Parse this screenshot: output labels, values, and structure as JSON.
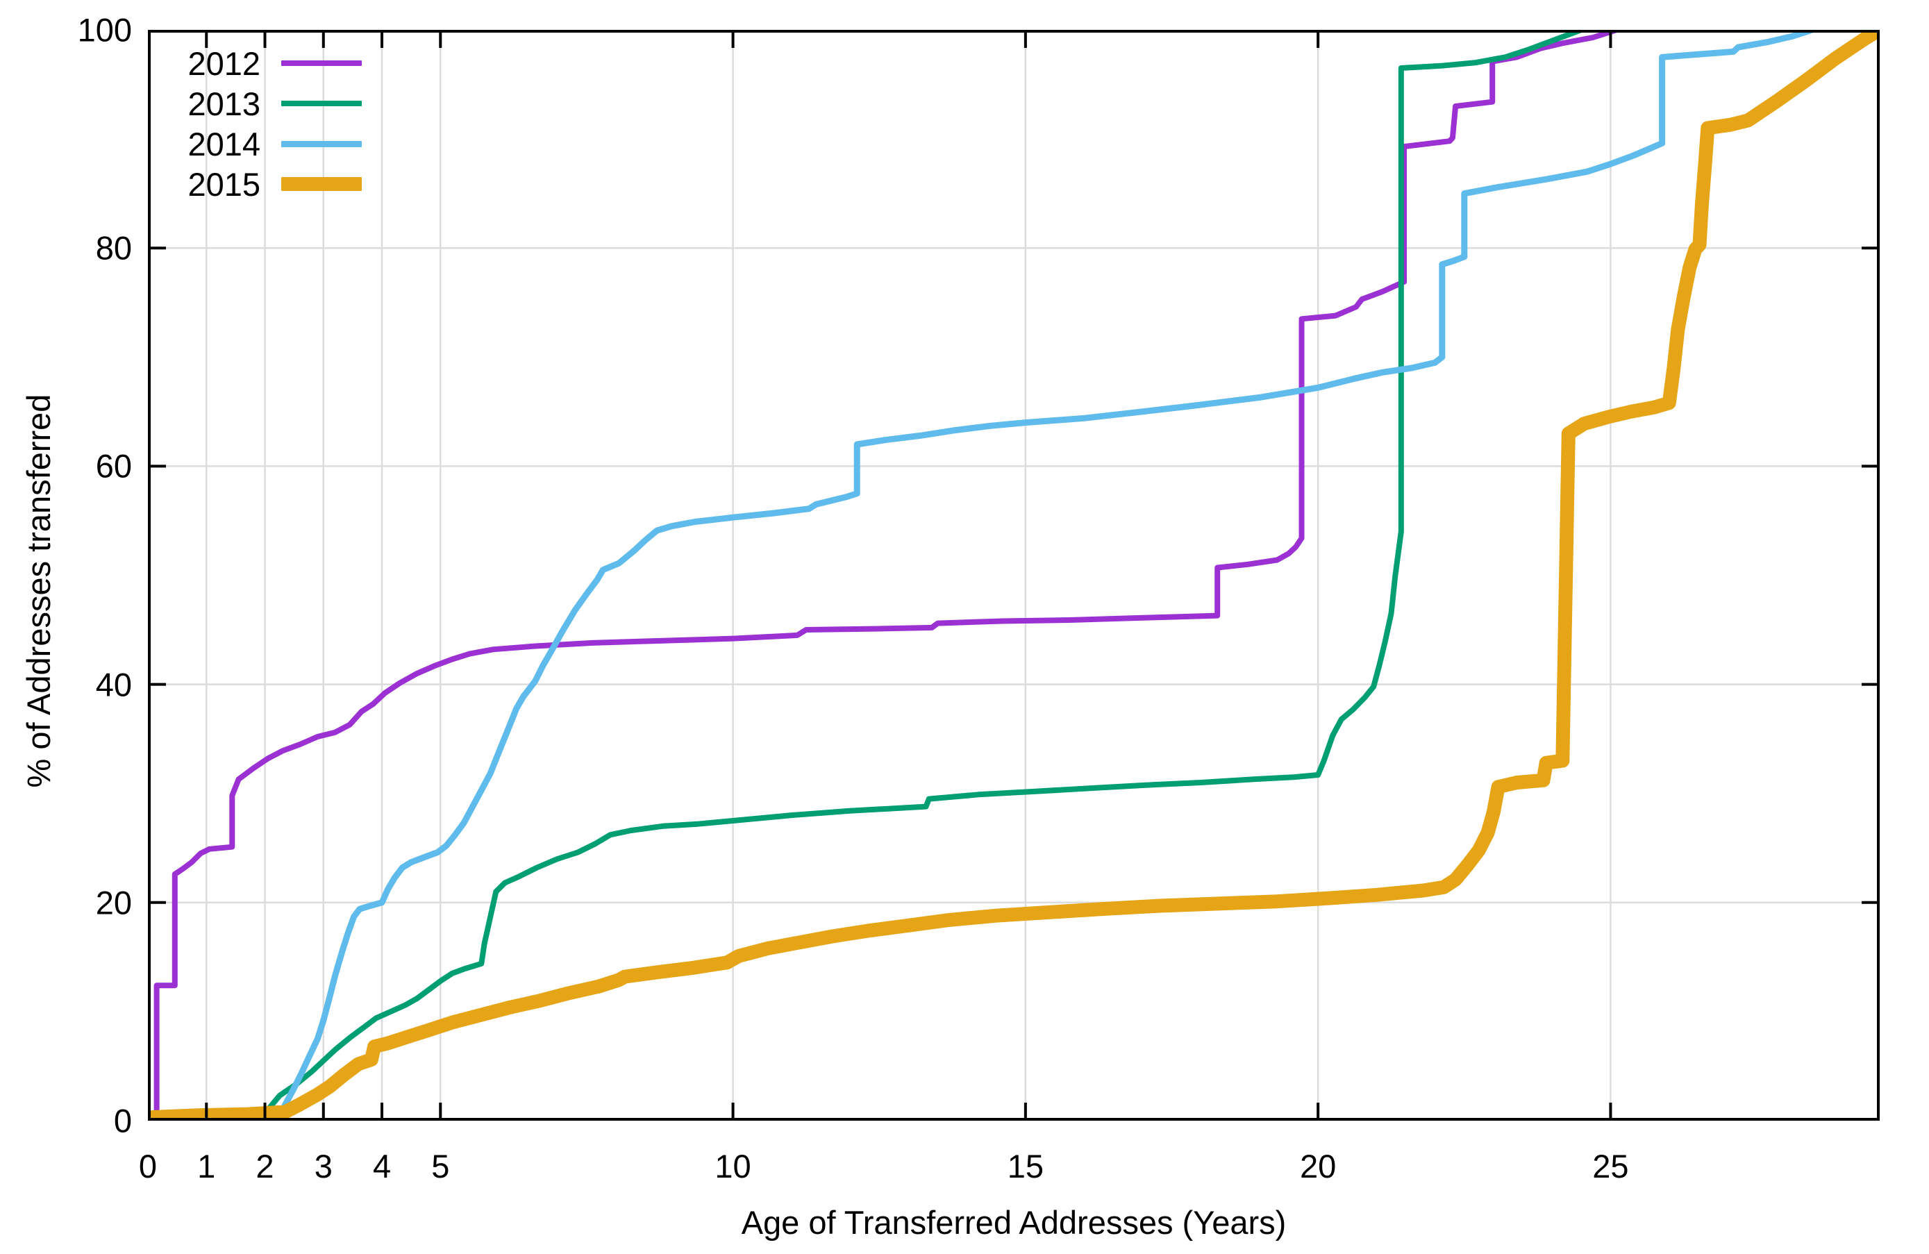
{
  "figure": {
    "background": "#ffffff"
  },
  "chart_data": {
    "type": "line",
    "subtype": "cdf-step-curves",
    "title": "",
    "xlabel": "Age of Transferred Addresses (Years)",
    "ylabel": "% of Addresses transferred",
    "xlim": [
      0,
      29.6
    ],
    "ylim": [
      0,
      100
    ],
    "x_ticks": [
      0,
      1,
      2,
      3,
      4,
      5,
      10,
      15,
      20,
      25
    ],
    "y_ticks": [
      0,
      20,
      40,
      60,
      80,
      100
    ],
    "grid_x": [
      1,
      2,
      3,
      4,
      5,
      10,
      15,
      20,
      25
    ],
    "grid_y": [
      20,
      40,
      60,
      80,
      100
    ],
    "grid_color": "#dcdcdc",
    "axis_color": "#000000",
    "legend_position": "top-left",
    "series": [
      {
        "name": "2012",
        "color": "#9B30D3",
        "stroke_width": 8,
        "points": [
          [
            0,
            0
          ],
          [
            0.15,
            0
          ],
          [
            0.15,
            12.4
          ],
          [
            0.46,
            12.4
          ],
          [
            0.46,
            22.6
          ],
          [
            0.6,
            23.1
          ],
          [
            0.75,
            23.7
          ],
          [
            0.9,
            24.5
          ],
          [
            1.05,
            24.9
          ],
          [
            1.44,
            25.1
          ],
          [
            1.44,
            29.8
          ],
          [
            1.55,
            31.3
          ],
          [
            1.8,
            32.3
          ],
          [
            2.05,
            33.2
          ],
          [
            2.3,
            33.9
          ],
          [
            2.6,
            34.5
          ],
          [
            2.9,
            35.2
          ],
          [
            3.2,
            35.6
          ],
          [
            3.45,
            36.3
          ],
          [
            3.65,
            37.5
          ],
          [
            3.85,
            38.2
          ],
          [
            4.05,
            39.2
          ],
          [
            4.3,
            40.1
          ],
          [
            4.6,
            41.0
          ],
          [
            4.9,
            41.7
          ],
          [
            5.2,
            42.3
          ],
          [
            5.5,
            42.8
          ],
          [
            5.9,
            43.2
          ],
          [
            6.6,
            43.5
          ],
          [
            7.6,
            43.8
          ],
          [
            8.8,
            44.0
          ],
          [
            10.0,
            44.2
          ],
          [
            11.1,
            44.5
          ],
          [
            11.25,
            45.0
          ],
          [
            12.5,
            45.1
          ],
          [
            13.4,
            45.2
          ],
          [
            13.5,
            45.6
          ],
          [
            14.6,
            45.8
          ],
          [
            15.8,
            45.9
          ],
          [
            17.0,
            46.1
          ],
          [
            18.28,
            46.3
          ],
          [
            18.28,
            50.7
          ],
          [
            18.8,
            51.0
          ],
          [
            19.3,
            51.4
          ],
          [
            19.5,
            52.0
          ],
          [
            19.62,
            52.6
          ],
          [
            19.72,
            53.4
          ],
          [
            19.72,
            73.5
          ],
          [
            20.3,
            73.8
          ],
          [
            20.65,
            74.6
          ],
          [
            20.75,
            75.3
          ],
          [
            21.1,
            76.0
          ],
          [
            21.47,
            76.9
          ],
          [
            21.47,
            89.3
          ],
          [
            22.25,
            89.8
          ],
          [
            22.3,
            90.1
          ],
          [
            22.35,
            93.0
          ],
          [
            22.98,
            93.4
          ],
          [
            22.98,
            97.1
          ],
          [
            23.4,
            97.5
          ],
          [
            23.8,
            98.3
          ],
          [
            24.2,
            98.8
          ],
          [
            24.7,
            99.3
          ],
          [
            25.05,
            99.9
          ],
          [
            25.1,
            100
          ],
          [
            25.57,
            100
          ]
        ]
      },
      {
        "name": "2013",
        "color": "#009E73",
        "stroke_width": 8,
        "points": [
          [
            0,
            0
          ],
          [
            1.9,
            0
          ],
          [
            2.05,
            1.0
          ],
          [
            2.25,
            2.3
          ],
          [
            2.55,
            3.4
          ],
          [
            2.8,
            4.5
          ],
          [
            3.0,
            5.5
          ],
          [
            3.2,
            6.5
          ],
          [
            3.45,
            7.6
          ],
          [
            3.7,
            8.6
          ],
          [
            3.9,
            9.4
          ],
          [
            4.15,
            10.0
          ],
          [
            4.4,
            10.6
          ],
          [
            4.6,
            11.2
          ],
          [
            4.8,
            12.0
          ],
          [
            5.0,
            12.8
          ],
          [
            5.2,
            13.5
          ],
          [
            5.4,
            13.9
          ],
          [
            5.7,
            14.4
          ],
          [
            5.75,
            16.2
          ],
          [
            5.85,
            18.6
          ],
          [
            5.95,
            21.0
          ],
          [
            6.1,
            21.8
          ],
          [
            6.35,
            22.4
          ],
          [
            6.65,
            23.2
          ],
          [
            7.0,
            24.0
          ],
          [
            7.35,
            24.6
          ],
          [
            7.65,
            25.4
          ],
          [
            7.9,
            26.2
          ],
          [
            8.25,
            26.6
          ],
          [
            8.8,
            27.0
          ],
          [
            9.4,
            27.2
          ],
          [
            10.0,
            27.5
          ],
          [
            11.0,
            28.0
          ],
          [
            12.0,
            28.4
          ],
          [
            13.3,
            28.8
          ],
          [
            13.35,
            29.5
          ],
          [
            14.2,
            29.9
          ],
          [
            15.2,
            30.2
          ],
          [
            16.2,
            30.5
          ],
          [
            17.2,
            30.8
          ],
          [
            18.0,
            31.0
          ],
          [
            18.9,
            31.3
          ],
          [
            19.6,
            31.5
          ],
          [
            20.0,
            31.7
          ],
          [
            20.1,
            33.0
          ],
          [
            20.25,
            35.3
          ],
          [
            20.4,
            36.8
          ],
          [
            20.6,
            37.7
          ],
          [
            20.8,
            38.8
          ],
          [
            20.95,
            39.8
          ],
          [
            21.05,
            41.8
          ],
          [
            21.15,
            44.0
          ],
          [
            21.25,
            46.5
          ],
          [
            21.32,
            50.0
          ],
          [
            21.42,
            54.0
          ],
          [
            21.42,
            96.5
          ],
          [
            22.1,
            96.7
          ],
          [
            22.7,
            97.0
          ],
          [
            23.2,
            97.5
          ],
          [
            23.6,
            98.2
          ],
          [
            24.0,
            99.0
          ],
          [
            24.4,
            99.8
          ],
          [
            24.5,
            100
          ],
          [
            24.75,
            100
          ]
        ]
      },
      {
        "name": "2014",
        "color": "#5FBBEB",
        "stroke_width": 9,
        "points": [
          [
            0,
            0
          ],
          [
            2.2,
            0
          ],
          [
            2.35,
            1.5
          ],
          [
            2.5,
            3.0
          ],
          [
            2.62,
            4.3
          ],
          [
            2.75,
            5.8
          ],
          [
            2.9,
            7.5
          ],
          [
            3.0,
            9.2
          ],
          [
            3.1,
            11.2
          ],
          [
            3.2,
            13.3
          ],
          [
            3.32,
            15.5
          ],
          [
            3.42,
            17.2
          ],
          [
            3.52,
            18.7
          ],
          [
            3.62,
            19.4
          ],
          [
            3.8,
            19.7
          ],
          [
            4.0,
            20.0
          ],
          [
            4.1,
            21.2
          ],
          [
            4.22,
            22.3
          ],
          [
            4.35,
            23.2
          ],
          [
            4.5,
            23.7
          ],
          [
            4.7,
            24.1
          ],
          [
            4.95,
            24.6
          ],
          [
            5.1,
            25.2
          ],
          [
            5.25,
            26.2
          ],
          [
            5.4,
            27.3
          ],
          [
            5.55,
            28.8
          ],
          [
            5.7,
            30.3
          ],
          [
            5.85,
            31.8
          ],
          [
            6.0,
            33.8
          ],
          [
            6.15,
            35.8
          ],
          [
            6.3,
            37.8
          ],
          [
            6.42,
            38.9
          ],
          [
            6.62,
            40.3
          ],
          [
            6.75,
            41.7
          ],
          [
            6.9,
            43.1
          ],
          [
            7.1,
            45.0
          ],
          [
            7.3,
            46.8
          ],
          [
            7.5,
            48.3
          ],
          [
            7.68,
            49.6
          ],
          [
            7.78,
            50.5
          ],
          [
            8.05,
            51.1
          ],
          [
            8.3,
            52.2
          ],
          [
            8.5,
            53.2
          ],
          [
            8.7,
            54.1
          ],
          [
            8.95,
            54.5
          ],
          [
            9.35,
            54.9
          ],
          [
            10.0,
            55.3
          ],
          [
            10.7,
            55.7
          ],
          [
            11.3,
            56.1
          ],
          [
            11.42,
            56.5
          ],
          [
            11.95,
            57.2
          ],
          [
            12.12,
            57.5
          ],
          [
            12.12,
            62.0
          ],
          [
            12.6,
            62.4
          ],
          [
            13.2,
            62.8
          ],
          [
            13.8,
            63.3
          ],
          [
            14.4,
            63.7
          ],
          [
            15.0,
            64.0
          ],
          [
            16.0,
            64.4
          ],
          [
            17.0,
            65.0
          ],
          [
            17.8,
            65.5
          ],
          [
            19.0,
            66.3
          ],
          [
            20.0,
            67.2
          ],
          [
            20.6,
            68.0
          ],
          [
            21.1,
            68.6
          ],
          [
            21.6,
            69.0
          ],
          [
            22.0,
            69.5
          ],
          [
            22.12,
            70.0
          ],
          [
            22.12,
            78.5
          ],
          [
            22.3,
            78.8
          ],
          [
            22.5,
            79.2
          ],
          [
            22.5,
            85.0
          ],
          [
            23.1,
            85.6
          ],
          [
            23.9,
            86.3
          ],
          [
            24.6,
            87.0
          ],
          [
            25.0,
            87.7
          ],
          [
            25.4,
            88.5
          ],
          [
            25.88,
            89.6
          ],
          [
            25.88,
            97.5
          ],
          [
            26.6,
            97.8
          ],
          [
            27.1,
            98.0
          ],
          [
            27.18,
            98.4
          ],
          [
            27.7,
            98.9
          ],
          [
            28.1,
            99.4
          ],
          [
            28.45,
            100
          ]
        ]
      },
      {
        "name": "2015",
        "color": "#E6A417",
        "stroke_width": 20,
        "points": [
          [
            0,
            0.3
          ],
          [
            0.9,
            0.5
          ],
          [
            1.7,
            0.6
          ],
          [
            2.35,
            0.8
          ],
          [
            2.6,
            1.5
          ],
          [
            2.9,
            2.4
          ],
          [
            3.1,
            3.1
          ],
          [
            3.35,
            4.2
          ],
          [
            3.6,
            5.2
          ],
          [
            3.82,
            5.6
          ],
          [
            3.87,
            6.8
          ],
          [
            4.1,
            7.1
          ],
          [
            4.45,
            7.7
          ],
          [
            4.8,
            8.3
          ],
          [
            5.2,
            9.0
          ],
          [
            5.7,
            9.7
          ],
          [
            6.2,
            10.4
          ],
          [
            6.7,
            11.0
          ],
          [
            7.2,
            11.7
          ],
          [
            7.7,
            12.3
          ],
          [
            8.05,
            12.9
          ],
          [
            8.15,
            13.2
          ],
          [
            8.7,
            13.6
          ],
          [
            9.3,
            14.0
          ],
          [
            9.9,
            14.5
          ],
          [
            10.1,
            15.1
          ],
          [
            10.6,
            15.8
          ],
          [
            11.1,
            16.3
          ],
          [
            11.7,
            16.9
          ],
          [
            12.3,
            17.4
          ],
          [
            13.0,
            17.9
          ],
          [
            13.7,
            18.4
          ],
          [
            14.5,
            18.8
          ],
          [
            15.4,
            19.1
          ],
          [
            16.3,
            19.4
          ],
          [
            17.3,
            19.7
          ],
          [
            18.3,
            19.9
          ],
          [
            19.3,
            20.1
          ],
          [
            20.2,
            20.4
          ],
          [
            21.0,
            20.7
          ],
          [
            21.8,
            21.1
          ],
          [
            22.15,
            21.4
          ],
          [
            22.35,
            22.1
          ],
          [
            22.55,
            23.4
          ],
          [
            22.75,
            24.8
          ],
          [
            22.9,
            26.4
          ],
          [
            23.0,
            28.3
          ],
          [
            23.08,
            30.6
          ],
          [
            23.4,
            31.0
          ],
          [
            23.85,
            31.2
          ],
          [
            23.9,
            32.8
          ],
          [
            24.18,
            33.0
          ],
          [
            24.28,
            63.0
          ],
          [
            24.55,
            63.9
          ],
          [
            24.95,
            64.5
          ],
          [
            25.35,
            65.0
          ],
          [
            25.75,
            65.4
          ],
          [
            26.0,
            65.8
          ],
          [
            26.08,
            69.0
          ],
          [
            26.15,
            72.5
          ],
          [
            26.25,
            75.5
          ],
          [
            26.35,
            78.2
          ],
          [
            26.45,
            79.9
          ],
          [
            26.52,
            80.3
          ],
          [
            26.56,
            84.0
          ],
          [
            26.62,
            88.0
          ],
          [
            26.66,
            91.0
          ],
          [
            27.05,
            91.3
          ],
          [
            27.35,
            91.7
          ],
          [
            27.85,
            93.5
          ],
          [
            28.35,
            95.4
          ],
          [
            28.85,
            97.4
          ],
          [
            29.35,
            99.2
          ],
          [
            29.6,
            100
          ]
        ]
      }
    ]
  }
}
